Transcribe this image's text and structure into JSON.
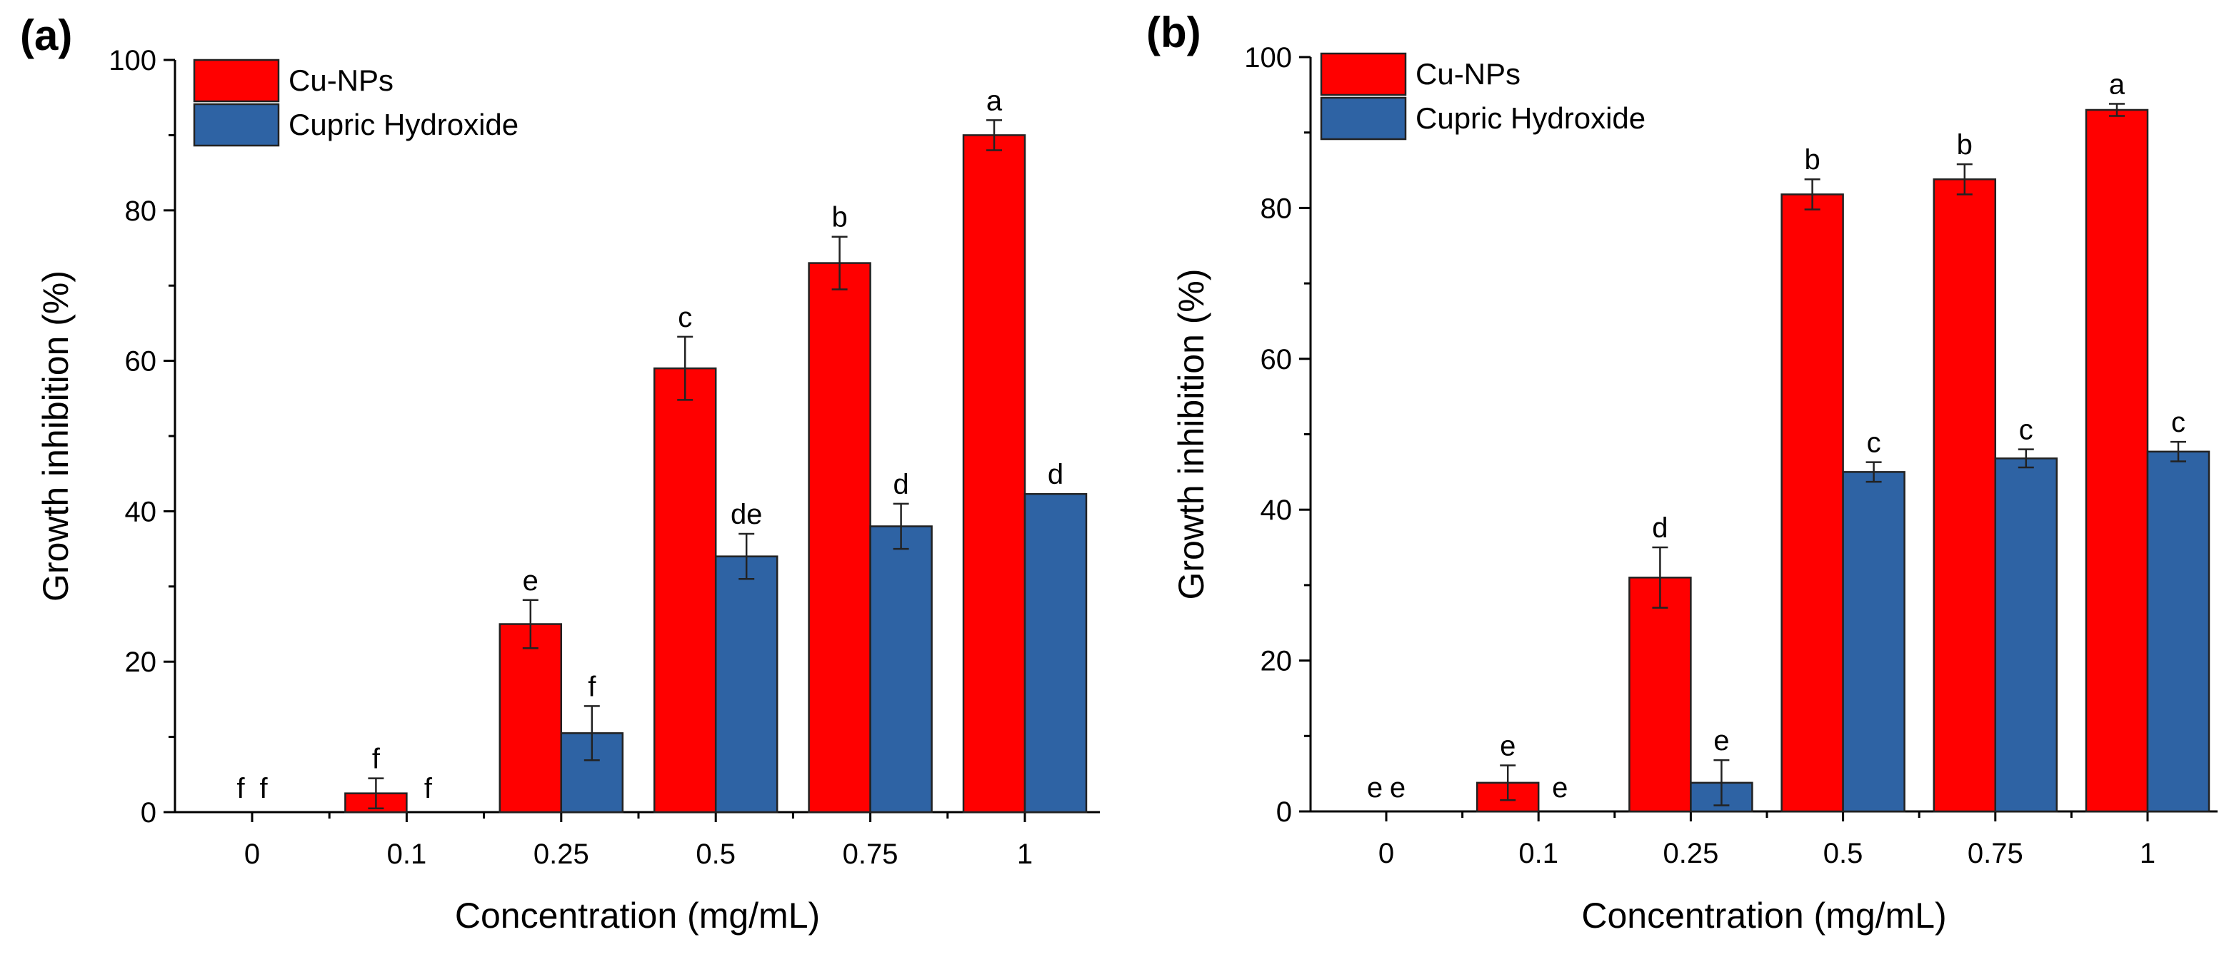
{
  "chart_data": [
    {
      "panel_label": "(a)",
      "type": "bar",
      "xlabel": "Concentration (mg/mL)",
      "ylabel": "Growth inhibition (%)",
      "ylim": [
        0,
        100
      ],
      "yticks": [
        "0",
        "20",
        "40",
        "60",
        "80",
        "100"
      ],
      "categories": [
        "0",
        "0.1",
        "0.25",
        "0.5",
        "0.75",
        "1"
      ],
      "legend_position": "top-left",
      "series": [
        {
          "name": "Cu-NPs",
          "color": "#ff0000",
          "values": [
            0,
            2.5,
            25,
            59,
            73,
            90
          ],
          "errors": [
            0,
            2,
            3.2,
            4.2,
            3.5,
            2
          ],
          "letters": [
            "f",
            "f",
            "e",
            "c",
            "b",
            "a"
          ]
        },
        {
          "name": "Cupric Hydroxide",
          "color": "#2e63a4",
          "values": [
            0,
            0,
            10.5,
            34,
            38,
            42.3
          ],
          "errors": [
            0,
            0,
            3.6,
            3,
            3,
            0
          ],
          "letters": [
            "f",
            "f",
            "f",
            "de",
            "d",
            "d"
          ]
        }
      ]
    },
    {
      "panel_label": "(b)",
      "type": "bar",
      "xlabel": "Concentration (mg/mL)",
      "ylabel": "Growth inhibition (%)",
      "ylim": [
        0,
        100
      ],
      "yticks": [
        "0",
        "20",
        "40",
        "60",
        "80",
        "100"
      ],
      "categories": [
        "0",
        "0.1",
        "0.25",
        "0.5",
        "0.75",
        "1"
      ],
      "legend_position": "top-left",
      "series": [
        {
          "name": "Cu-NPs",
          "color": "#ff0000",
          "values": [
            0,
            3.8,
            31,
            81.8,
            83.8,
            93
          ],
          "errors": [
            0,
            2.3,
            4,
            2,
            2,
            0.8
          ],
          "letters": [
            "e",
            "e",
            "d",
            "b",
            "b",
            "a"
          ]
        },
        {
          "name": "Cupric Hydroxide",
          "color": "#2e63a4",
          "values": [
            0,
            0,
            3.8,
            45,
            46.8,
            47.7
          ],
          "errors": [
            0,
            0,
            3,
            1.3,
            1.2,
            1.3
          ],
          "letters": [
            "e",
            "e",
            "e",
            "c",
            "c",
            "c"
          ]
        }
      ]
    }
  ]
}
